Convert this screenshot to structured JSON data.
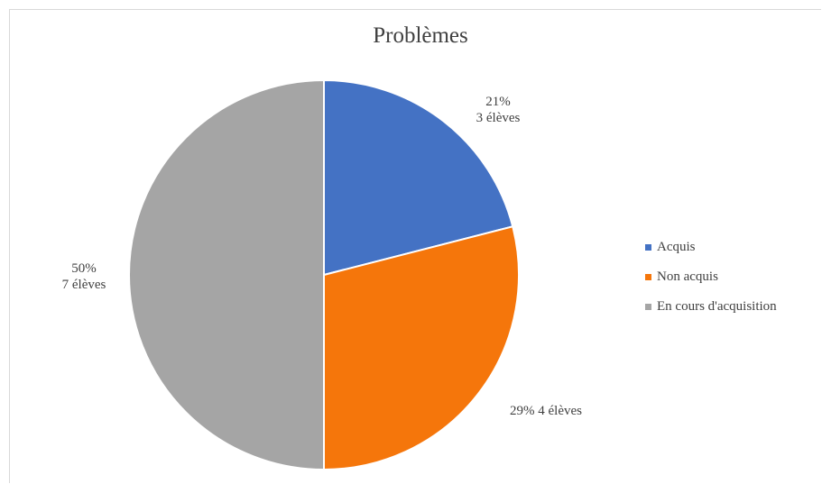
{
  "chart_data": {
    "type": "pie",
    "title": "Problèmes",
    "categories": [
      "Acquis",
      "Non acquis",
      "En cours d'acquisition"
    ],
    "values": [
      21,
      29,
      50
    ],
    "counts": [
      3,
      4,
      7
    ],
    "labels": [
      [
        "21%",
        "3 élèves"
      ],
      [
        "29% 4 élèves"
      ],
      [
        "50%",
        "7 élèves"
      ]
    ],
    "colors": [
      "#4472C4",
      "#F5760B",
      "#A5A5A5"
    ],
    "legend_position": "right"
  }
}
